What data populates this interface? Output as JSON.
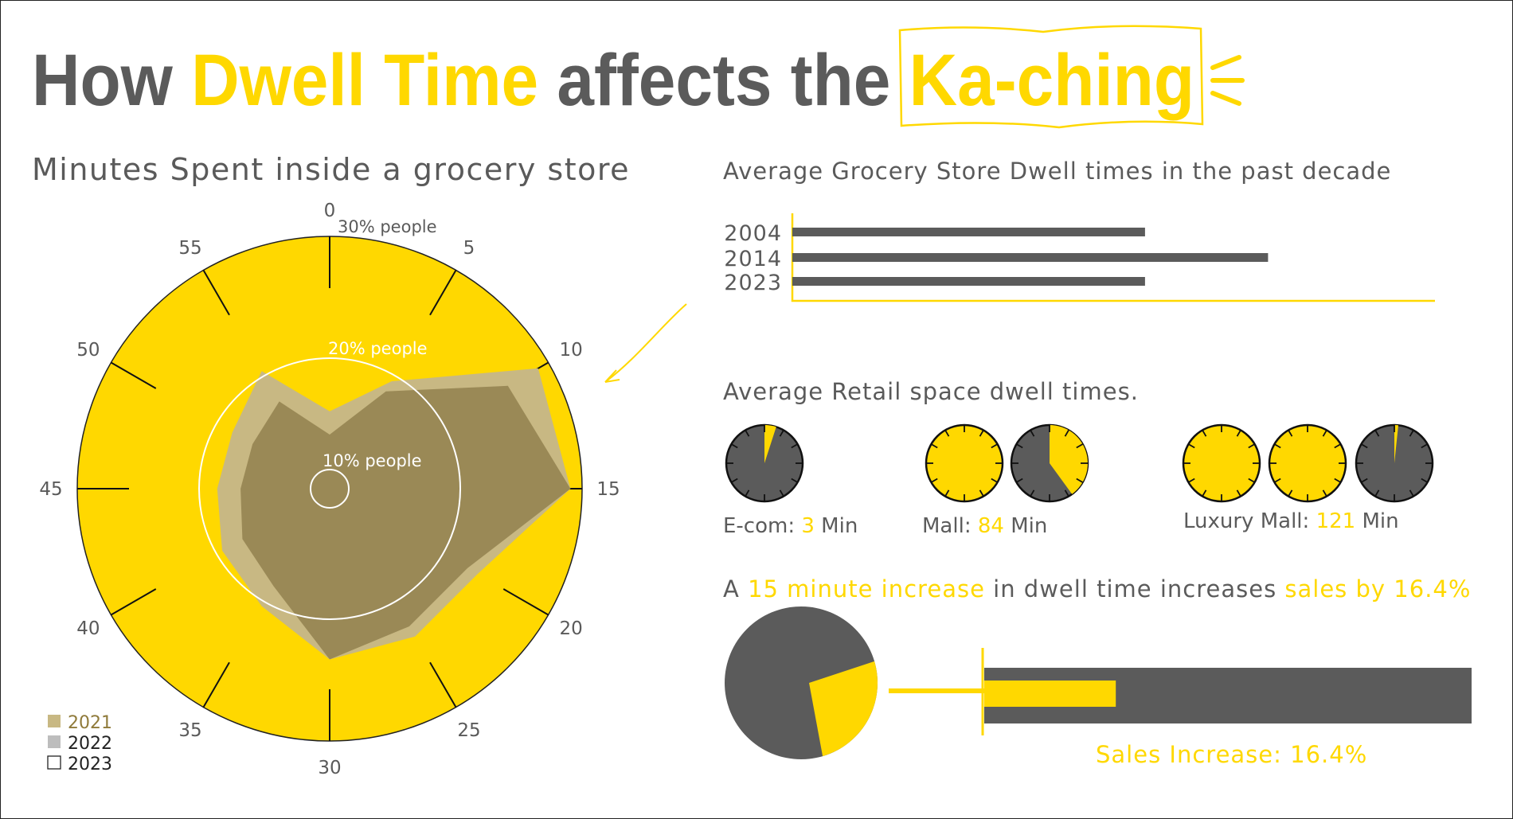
{
  "header": {
    "title_part1": "How ",
    "title_part2": "Dwell Time",
    "title_part3": " affects the ",
    "title_part4": "Ka-ching"
  },
  "colors": {
    "yellow": "#FFD800",
    "gray": "#5B5B5B",
    "tan_2021": "#C8B883",
    "olive_2022": "#9A8956",
    "white": "#FFFFFF"
  },
  "radar": {
    "heading": "Minutes Spent inside a grocery store",
    "ring_labels": [
      "10% people",
      "20% people",
      "30% people"
    ],
    "angle_labels": [
      "0",
      "5",
      "10",
      "15",
      "20",
      "25",
      "30",
      "35",
      "40",
      "45",
      "50",
      "55"
    ],
    "legend": [
      {
        "label": "2021",
        "color": "#C8B883"
      },
      {
        "label": "2022",
        "color": "#BDBDBD"
      },
      {
        "label": "2023",
        "color": "#FFFFFF"
      }
    ]
  },
  "decade": {
    "heading": "Average Grocery Store Dwell times in the past decade"
  },
  "retail": {
    "heading": "Average Retail space dwell times.",
    "ecom": {
      "label": "E-com: ",
      "value": "3",
      "unit": " Min"
    },
    "mall": {
      "label": "Mall: ",
      "value": "84",
      "unit": " Min"
    },
    "luxury": {
      "label": "Luxury Mall: ",
      "value": "121",
      "unit": " Min"
    }
  },
  "sales": {
    "heading_a": "A ",
    "heading_b": "15 minute increase",
    "heading_c": " in dwell time increases ",
    "heading_d": "sales by 16.4%",
    "bar_label": "Sales Increase: 16.4%"
  },
  "chart_data": [
    {
      "type": "radar",
      "title": "Minutes Spent inside a grocery store",
      "angle_ticks": [
        0,
        5,
        10,
        15,
        20,
        25,
        30,
        35,
        40,
        45,
        50,
        55
      ],
      "ring_labels": [
        "10% people",
        "20% people",
        "30% people"
      ],
      "series": [
        {
          "name": "2021",
          "color": "#C8B883",
          "points": [
            [
              0,
              15
            ],
            [
              5,
              19
            ],
            [
              10,
              29
            ],
            [
              15,
              29
            ],
            [
              20,
              23
            ],
            [
              25,
              23
            ],
            [
              30,
              23
            ],
            [
              35,
              20
            ],
            [
              40,
              19
            ],
            [
              45,
              18
            ],
            [
              50,
              18
            ],
            [
              55,
              20
            ]
          ]
        },
        {
          "name": "2022",
          "color": "#9A8956",
          "points": [
            [
              0,
              13
            ],
            [
              5,
              18
            ],
            [
              10,
              26
            ],
            [
              15,
              29
            ],
            [
              20,
              22
            ],
            [
              25,
              22
            ],
            [
              30,
              23
            ],
            [
              35,
              18
            ],
            [
              40,
              17
            ],
            [
              45,
              16
            ],
            [
              50,
              16
            ],
            [
              55,
              17
            ]
          ]
        }
      ]
    },
    {
      "type": "bar",
      "title": "Average Grocery Store Dwell times in the past decade",
      "categories": [
        "2004",
        "2014",
        "2023"
      ],
      "values": [
        43,
        58,
        43
      ]
    },
    {
      "type": "gauge",
      "title": "Average Retail space dwell times.",
      "categories": [
        "E-com",
        "Mall",
        "Luxury Mall"
      ],
      "values": [
        3,
        84,
        121
      ],
      "unit": "Min"
    },
    {
      "type": "bar",
      "title": "A 15 minute increase in dwell time increases sales by 16.4%",
      "pie_fraction": 0.25,
      "bar_fill": 0.27,
      "label": "Sales Increase: 16.4%"
    }
  ]
}
